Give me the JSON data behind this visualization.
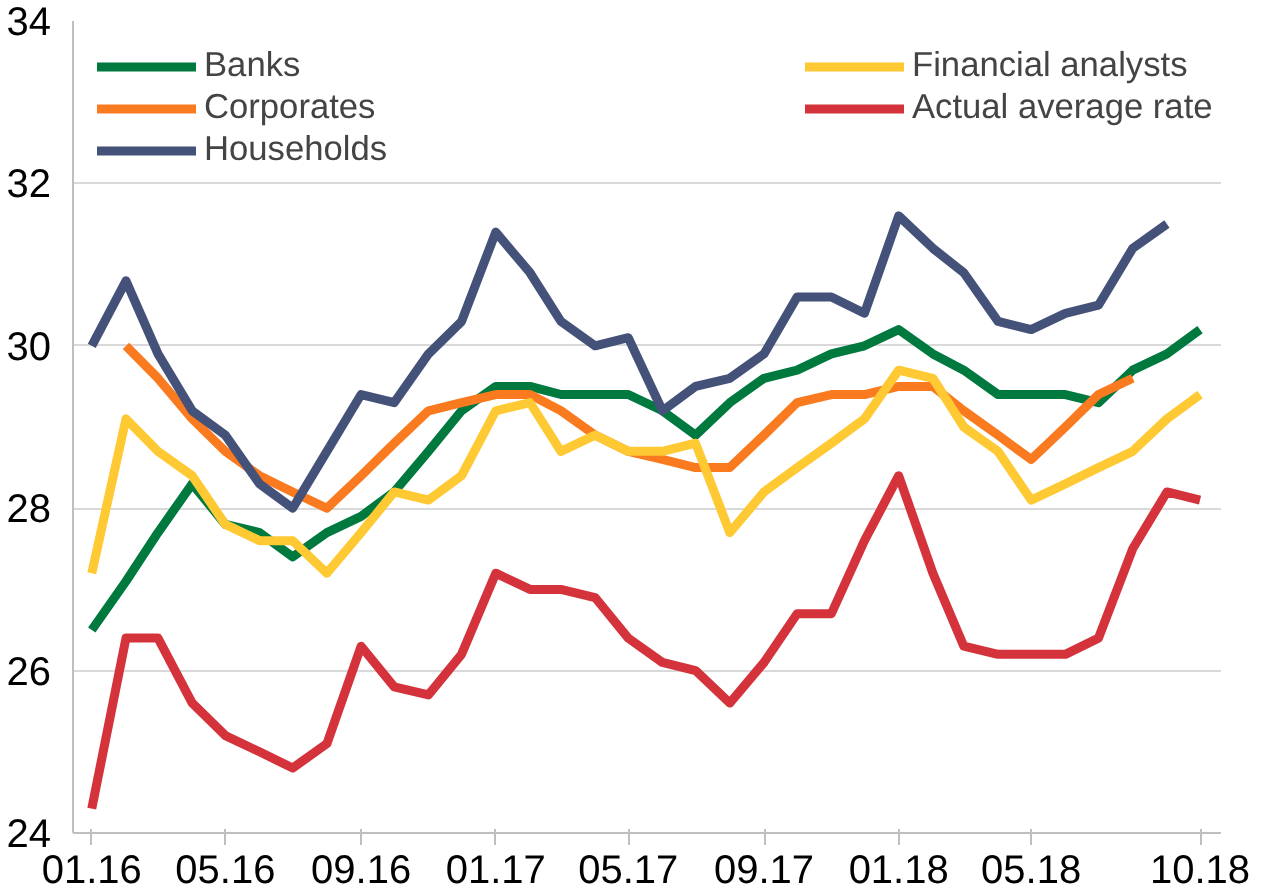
{
  "chart_data": {
    "type": "line",
    "x": [
      "2016-01",
      "2016-02",
      "2016-03",
      "2016-04",
      "2016-05",
      "2016-06",
      "2016-07",
      "2016-08",
      "2016-09",
      "2016-10",
      "2016-11",
      "2016-12",
      "2017-01",
      "2017-02",
      "2017-03",
      "2017-04",
      "2017-05",
      "2017-06",
      "2017-07",
      "2017-08",
      "2017-09",
      "2017-10",
      "2017-11",
      "2017-12",
      "2018-01",
      "2018-02",
      "2018-03",
      "2018-04",
      "2018-05",
      "2018-06",
      "2018-07",
      "2018-08",
      "2018-09",
      "2018-10"
    ],
    "series": [
      {
        "name": "Banks",
        "color": "#00793f",
        "values": [
          26.5,
          27.1,
          27.7,
          28.3,
          27.8,
          27.7,
          27.4,
          27.7,
          27.9,
          28.2,
          28.7,
          29.2,
          29.5,
          29.5,
          29.4,
          29.4,
          29.4,
          29.2,
          28.9,
          29.3,
          29.6,
          29.7,
          29.9,
          30.0,
          30.2,
          29.9,
          29.7,
          29.4,
          29.4,
          29.4,
          29.3,
          29.7,
          29.9,
          30.2
        ]
      },
      {
        "name": "Corporates",
        "color": "#f97a1f",
        "values": [
          null,
          30.0,
          29.6,
          29.1,
          28.7,
          28.4,
          28.2,
          28.0,
          28.4,
          28.8,
          29.2,
          29.3,
          29.4,
          29.4,
          29.2,
          28.9,
          28.7,
          28.6,
          28.5,
          28.5,
          28.9,
          29.3,
          29.4,
          29.4,
          29.5,
          29.5,
          29.2,
          28.9,
          28.6,
          29.0,
          29.4,
          29.6,
          null,
          null
        ]
      },
      {
        "name": "Households",
        "color": "#44527a",
        "values": [
          30.0,
          30.8,
          29.9,
          29.2,
          28.9,
          28.3,
          28.0,
          28.7,
          29.4,
          29.3,
          29.9,
          30.3,
          31.4,
          30.9,
          30.3,
          30.0,
          30.1,
          29.2,
          29.5,
          29.6,
          29.9,
          30.6,
          30.6,
          30.4,
          31.6,
          31.2,
          30.9,
          30.3,
          30.2,
          30.4,
          30.5,
          31.2,
          31.5,
          null
        ]
      },
      {
        "name": "Financial analysts",
        "color": "#ffc933",
        "values": [
          27.2,
          29.1,
          28.7,
          28.4,
          27.8,
          27.6,
          27.6,
          27.2,
          27.7,
          28.2,
          28.1,
          28.4,
          29.2,
          29.3,
          28.7,
          28.9,
          28.7,
          28.7,
          28.8,
          27.7,
          28.2,
          28.5,
          28.8,
          29.1,
          29.7,
          29.6,
          29.0,
          28.7,
          28.1,
          28.3,
          28.5,
          28.7,
          29.1,
          29.4
        ]
      },
      {
        "name": "Actual average rate",
        "color": "#d4333b",
        "values": [
          24.3,
          26.4,
          26.4,
          25.6,
          25.2,
          25.0,
          24.8,
          25.1,
          26.3,
          25.8,
          25.7,
          26.2,
          27.2,
          27.0,
          27.0,
          26.9,
          26.4,
          26.1,
          26.0,
          25.6,
          26.1,
          26.7,
          26.7,
          27.6,
          28.4,
          27.2,
          26.3,
          26.2,
          26.2,
          26.2,
          26.4,
          27.5,
          28.2,
          28.1
        ]
      }
    ],
    "xlim": [
      "2015-12-15",
      "2018-10-20"
    ],
    "xticks": [
      {
        "value": "2016-01",
        "label": "01.16"
      },
      {
        "value": "2016-05",
        "label": "05.16"
      },
      {
        "value": "2016-09",
        "label": "09.16"
      },
      {
        "value": "2017-01",
        "label": "01.17"
      },
      {
        "value": "2017-05",
        "label": "05.17"
      },
      {
        "value": "2017-09",
        "label": "09.17"
      },
      {
        "value": "2018-01",
        "label": "01.18"
      },
      {
        "value": "2018-05",
        "label": "05.18"
      },
      {
        "value": "2018-10",
        "label": "10.18"
      }
    ],
    "ylim": [
      24,
      34
    ],
    "yticks": [
      24,
      26,
      28,
      30,
      32,
      34
    ],
    "grid": "y",
    "legend": "top left",
    "line_style": "solid",
    "marker": "none"
  }
}
